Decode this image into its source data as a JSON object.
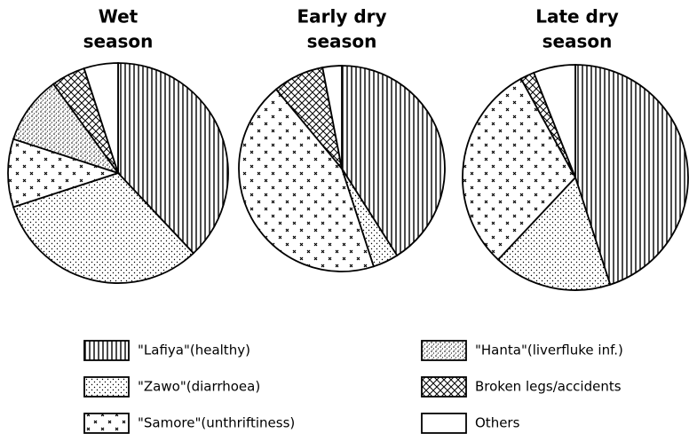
{
  "chart_data": [
    {
      "type": "pie",
      "title": [
        "Wet",
        "season"
      ],
      "values": [
        38,
        32,
        10,
        10,
        5,
        5
      ]
    },
    {
      "type": "pie",
      "title": [
        "Early dry",
        "season"
      ],
      "values": [
        41,
        4,
        44,
        0,
        8,
        3
      ]
    },
    {
      "type": "pie",
      "title": [
        "Late dry",
        "season"
      ],
      "values": [
        45,
        17,
        30,
        0,
        2,
        6
      ]
    }
  ],
  "legend": [
    "\"Lafiya\"(healthy)",
    "\"Zawo\"(diarrhoea)",
    "\"Samore\"(unthriftiness)",
    "\"Hanta\"(liverfluke inf.)",
    "Broken legs/accidents",
    "Others"
  ]
}
